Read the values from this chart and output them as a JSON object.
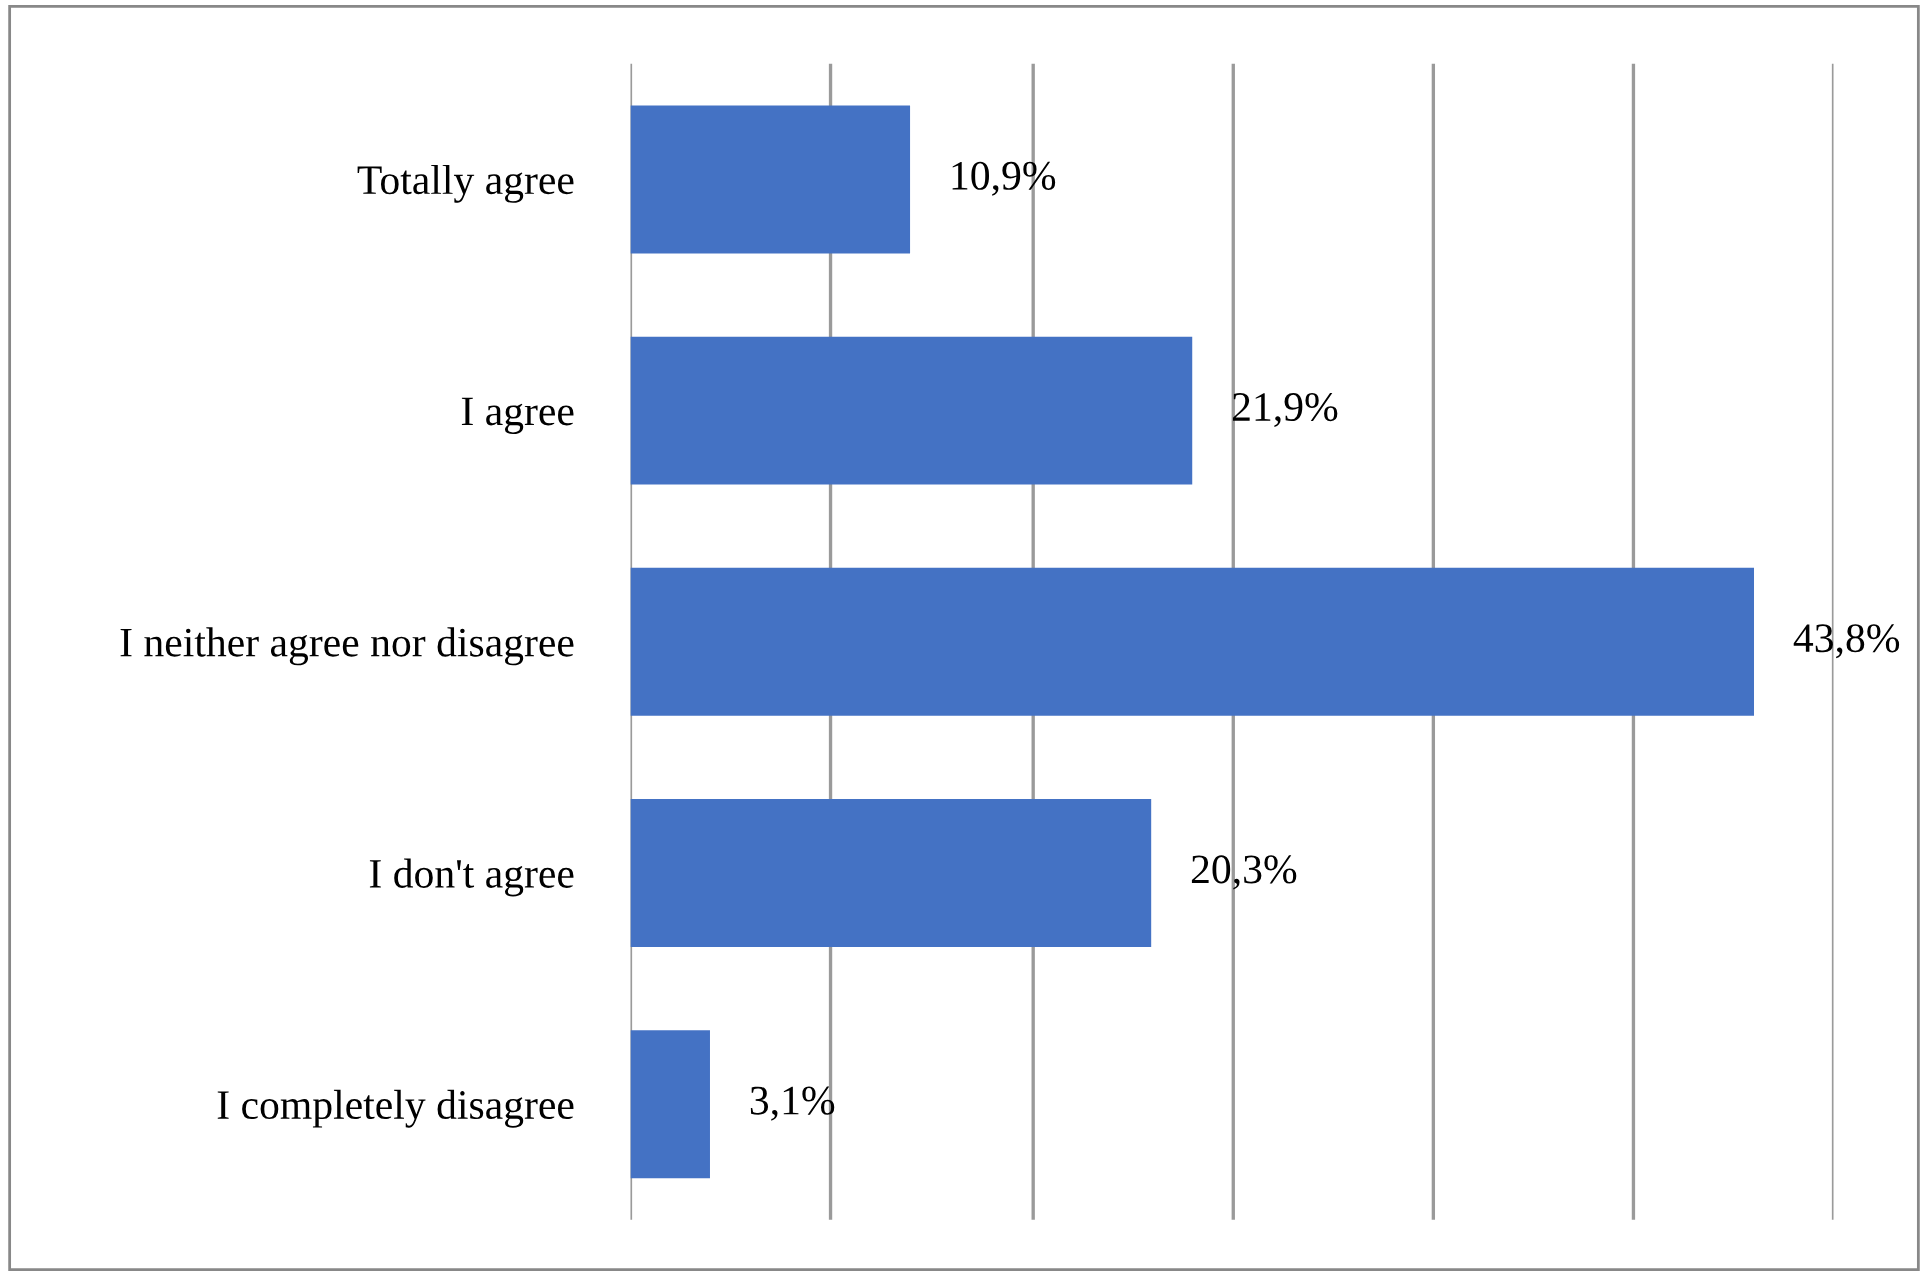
{
  "chart_data": {
    "type": "bar",
    "orientation": "horizontal",
    "categories": [
      "Totally agree",
      "I agree",
      "I neither agree nor disagree",
      "I don't agree",
      "I completely disagree"
    ],
    "values": [
      10.9,
      21.9,
      43.8,
      20.3,
      3.1
    ],
    "value_labels": [
      "10,9%",
      "21,9%",
      "43,8%",
      "20,3%",
      "3,1%"
    ],
    "color": "#4472c4",
    "xlim": [
      0,
      46.9
    ],
    "xticks": [
      {
        "value": 0,
        "label": null
      },
      {
        "value": 7.8,
        "label": null
      },
      {
        "value": 15.7,
        "label": null
      },
      {
        "value": 23.5,
        "label": null
      },
      {
        "value": 31.3,
        "label": null
      },
      {
        "value": 39.1,
        "label": null
      },
      {
        "value": 46.9,
        "label": null
      }
    ],
    "grid": "x",
    "legend": false
  }
}
